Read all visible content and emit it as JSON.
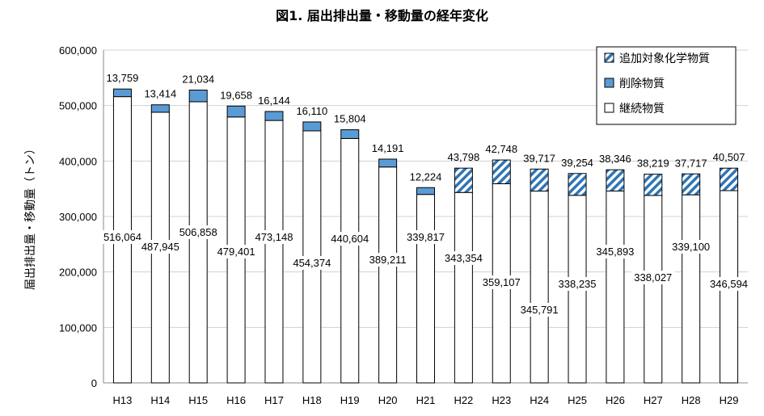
{
  "chart_data": {
    "type": "bar",
    "stacked": true,
    "title": "図1. 届出排出量・移動量の経年変化",
    "ylabel": "届出排出量・移動量（トン）",
    "xlabel": "",
    "ylim": [
      0,
      600000
    ],
    "yticks": [
      "0",
      "100,000",
      "200,000",
      "300,000",
      "400,000",
      "500,000",
      "600,000"
    ],
    "ytick_values": [
      0,
      100000,
      200000,
      300000,
      400000,
      500000,
      600000
    ],
    "grid": true,
    "legend_position": "top-right",
    "categories": [
      "H13",
      "H14",
      "H15",
      "H16",
      "H17",
      "H18",
      "H19",
      "H20",
      "H21",
      "H22",
      "H23",
      "H24",
      "H25",
      "H26",
      "H27",
      "H28",
      "H29"
    ],
    "series": [
      {
        "name": "継続物質",
        "color": "#ffffff",
        "values": [
          516064,
          487945,
          506858,
          479401,
          473148,
          454374,
          440604,
          389211,
          339817,
          343354,
          359107,
          345791,
          338235,
          345893,
          338027,
          339100,
          346594
        ],
        "labels": [
          "516,064",
          "487,945",
          "506,858",
          "479,401",
          "473,148",
          "454,374",
          "440,604",
          "389,211",
          "339,817",
          "343,354",
          "359,107",
          "345,791",
          "338,235",
          "345,893",
          "338,027",
          "339,100",
          "346,594"
        ]
      },
      {
        "name": "削除物質",
        "color": "#5b9bd5",
        "values": [
          13759,
          13414,
          21034,
          19658,
          16144,
          16110,
          15804,
          14191,
          12224,
          null,
          null,
          null,
          null,
          null,
          null,
          null,
          null
        ],
        "labels": [
          "13,759",
          "13,414",
          "21,034",
          "19,658",
          "16,144",
          "16,110",
          "15,804",
          "14,191",
          "12,224",
          null,
          null,
          null,
          null,
          null,
          null,
          null,
          null
        ]
      },
      {
        "name": "追加対象化学物質",
        "color": "#2e75b6",
        "pattern": "diagonal-hatch",
        "values": [
          null,
          null,
          null,
          null,
          null,
          null,
          null,
          null,
          null,
          43798,
          42748,
          39717,
          39254,
          38346,
          38219,
          37717,
          40507
        ],
        "labels": [
          null,
          null,
          null,
          null,
          null,
          null,
          null,
          null,
          null,
          "43,798",
          "42,748",
          "39,717",
          "39,254",
          "38,346",
          "38,219",
          "37,717",
          "40,507"
        ]
      }
    ]
  }
}
